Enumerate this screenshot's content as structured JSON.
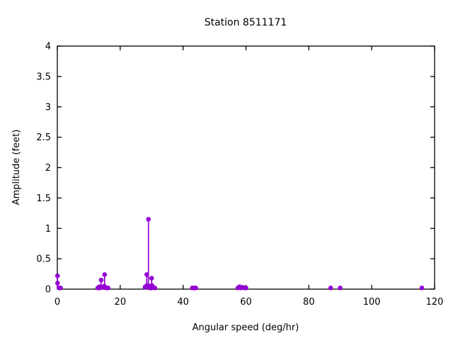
{
  "window": {
    "background": "#ffffff"
  },
  "chart_data": {
    "type": "scatter",
    "style": "impulses+points",
    "title": "Station 8511171",
    "xlabel": "Angular speed (deg/hr)",
    "ylabel": "Amplitude (feet)",
    "xlim": [
      0,
      120
    ],
    "ylim": [
      0,
      4
    ],
    "xticks": [
      0,
      20,
      40,
      60,
      80,
      100,
      120
    ],
    "yticks": [
      0,
      0.5,
      1,
      1.5,
      2,
      2.5,
      3,
      3.5,
      4
    ],
    "grid": false,
    "legend_position": "none",
    "point_color": "#9400d3",
    "axis_color": "#000000",
    "series": [
      {
        "name": "amplitude",
        "color": "#9400d3",
        "points": [
          [
            0.04,
            0.22
          ],
          [
            0.08,
            0.1
          ],
          [
            0.54,
            0.02
          ],
          [
            1.02,
            0.02
          ],
          [
            12.85,
            0.02
          ],
          [
            13.4,
            0.04
          ],
          [
            13.47,
            0.02
          ],
          [
            13.94,
            0.15
          ],
          [
            14.49,
            0.03
          ],
          [
            14.96,
            0.05
          ],
          [
            15.04,
            0.24
          ],
          [
            15.58,
            0.02
          ],
          [
            16.14,
            0.02
          ],
          [
            27.9,
            0.03
          ],
          [
            27.97,
            0.04
          ],
          [
            28.44,
            0.24
          ],
          [
            28.51,
            0.06
          ],
          [
            28.98,
            1.15
          ],
          [
            29.46,
            0.02
          ],
          [
            29.53,
            0.05
          ],
          [
            29.96,
            0.02
          ],
          [
            30.0,
            0.18
          ],
          [
            30.08,
            0.06
          ],
          [
            30.54,
            0.03
          ],
          [
            31.02,
            0.02
          ],
          [
            42.93,
            0.02
          ],
          [
            43.48,
            0.02
          ],
          [
            44.05,
            0.02
          ],
          [
            57.42,
            0.02
          ],
          [
            57.97,
            0.04
          ],
          [
            58.44,
            0.02
          ],
          [
            58.98,
            0.03
          ],
          [
            59.51,
            0.02
          ],
          [
            60.0,
            0.02
          ],
          [
            86.95,
            0.02
          ],
          [
            89.97,
            0.02
          ],
          [
            115.94,
            0.02
          ]
        ]
      }
    ]
  }
}
